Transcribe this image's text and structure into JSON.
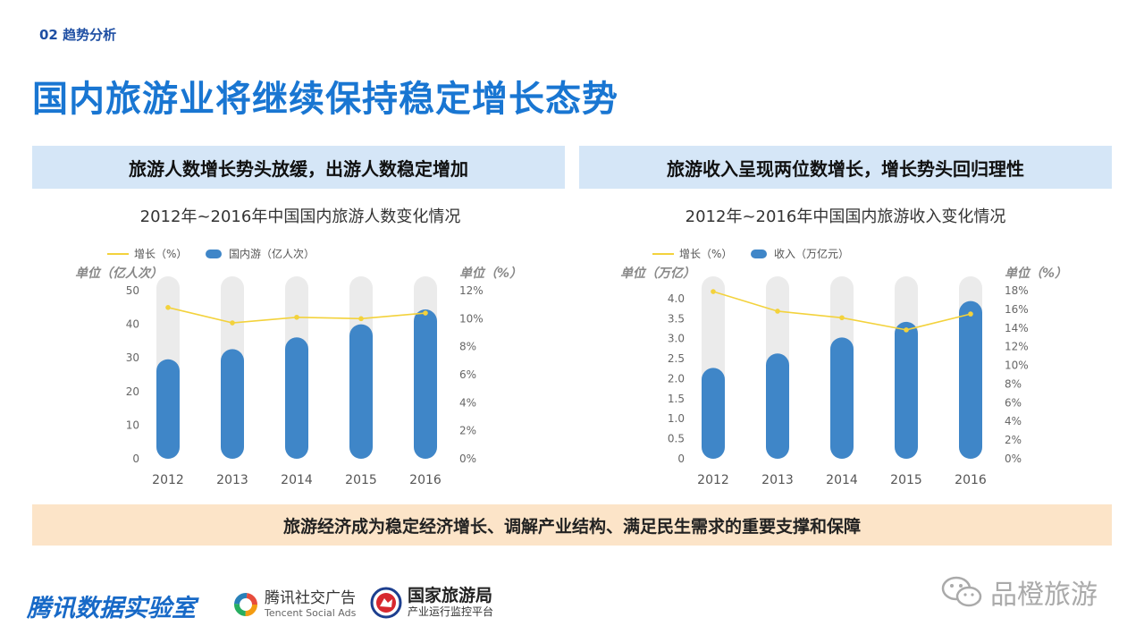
{
  "header": {
    "section_label": "02 趋势分析",
    "title": "国内旅游业将继续保持稳定增长态势"
  },
  "panels": [
    {
      "heading": "旅游人数增长势头放缓，出游人数稳定增加"
    },
    {
      "heading": "旅游收入呈现两位数增长，增长势头回归理性"
    }
  ],
  "chart_data": [
    {
      "type": "bar",
      "title": "2012年~2016年中国国内旅游人数变化情况",
      "categories": [
        "2012",
        "2013",
        "2014",
        "2015",
        "2016"
      ],
      "series": [
        {
          "name": "国内游（亿人次）",
          "type": "bar",
          "axis": "left",
          "values": [
            29.6,
            32.6,
            36.1,
            40.0,
            44.4
          ],
          "color": "#3f86c8"
        },
        {
          "name": "增长（%）",
          "type": "line",
          "axis": "right",
          "values": [
            0.108,
            0.097,
            0.101,
            0.1,
            0.104
          ],
          "color": "#f3d23c"
        }
      ],
      "ylabel_left": "单位（亿人次）",
      "ylabel_right": "单位（%）",
      "ylim_left": [
        0,
        50
      ],
      "yticks_left": [
        "0",
        "10",
        "20",
        "30",
        "40",
        "50"
      ],
      "ylim_right": [
        0,
        0.12
      ],
      "yticks_right": [
        "0%",
        "2%",
        "4%",
        "6%",
        "8%",
        "10%",
        "12%"
      ],
      "legend_placement": "top-left",
      "bar_track_color": "#ebebeb",
      "grid": false
    },
    {
      "type": "bar",
      "title": "2012年~2016年中国国内旅游收入变化情况",
      "categories": [
        "2012",
        "2013",
        "2014",
        "2015",
        "2016"
      ],
      "series": [
        {
          "name": "收入（万亿元）",
          "type": "bar",
          "axis": "left",
          "values": [
            2.27,
            2.63,
            3.03,
            3.42,
            3.94
          ],
          "color": "#3f86c8"
        },
        {
          "name": "增长（%）",
          "type": "line",
          "axis": "right",
          "values": [
            0.179,
            0.158,
            0.151,
            0.138,
            0.155
          ],
          "color": "#f3d23c"
        }
      ],
      "ylabel_left": "单位（万亿）",
      "ylabel_right": "单位（%）",
      "ylim_left": [
        0,
        4.2
      ],
      "yticks_left": [
        "0",
        "0.5",
        "1.0",
        "1.5",
        "2.0",
        "2.5",
        "3.0",
        "3.5",
        "4.0"
      ],
      "ylim_right": [
        0,
        0.18
      ],
      "yticks_right": [
        "0%",
        "2%",
        "4%",
        "6%",
        "8%",
        "10%",
        "12%",
        "14%",
        "16%",
        "18%"
      ],
      "legend_placement": "top-left",
      "bar_track_color": "#ebebeb",
      "grid": false
    }
  ],
  "footer": {
    "banner": "旅游经济成为稳定经济增长、调解产业结构、满足民生需求的重要支撑和保障"
  },
  "logos": {
    "tencent_data_lab": "腾讯数据实验室",
    "tencent_social_cn": "腾讯社交广告",
    "tencent_social_en": "Tencent Social Ads",
    "cnta_name": "国家旅游局",
    "cnta_sub": "产业运行监控平台",
    "watermark": "品橙旅游"
  },
  "colors": {
    "title_blue": "#1976d2",
    "panel_head_bg": "#d5e6f7",
    "footer_bg": "#fce4c8",
    "bar_blue": "#3f86c8",
    "line_yellow": "#f3d23c"
  }
}
